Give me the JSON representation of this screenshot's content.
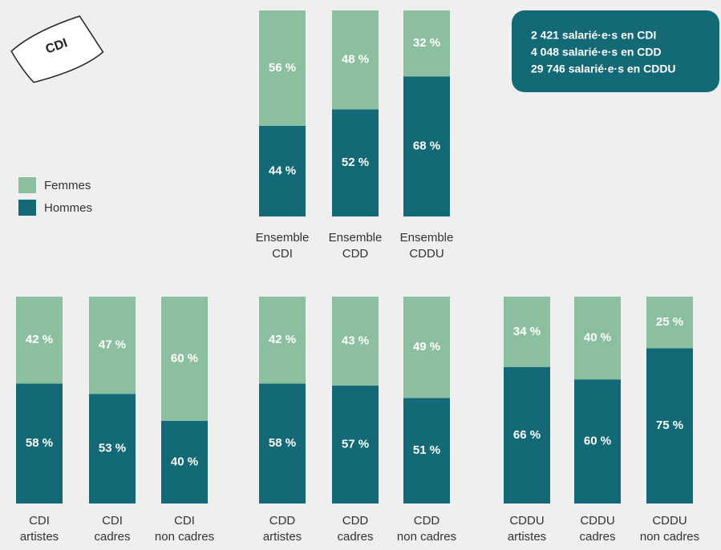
{
  "icon_label": "CDI",
  "note_lines": [
    "2 421 salarié·e·s en CDI",
    "4 048 salarié·e·s en CDD",
    "29 746 salarié·e·s en CDDU"
  ],
  "chart_data": [
    {
      "type": "bar",
      "stacked": true,
      "ylim": [
        0,
        100
      ],
      "categories": [
        [
          "Ensemble",
          "CDI"
        ],
        [
          "Ensemble",
          "CDD"
        ],
        [
          "Ensemble",
          "CDDU"
        ]
      ],
      "series": [
        {
          "name": "Hommes",
          "color": "#136a76",
          "values": [
            44,
            52,
            68
          ],
          "value_labels": [
            "44 %",
            "52 %",
            "68 %"
          ]
        },
        {
          "name": "Femmes",
          "color": "#8bbf9f",
          "values": [
            56,
            48,
            32
          ],
          "value_labels": [
            "56 %",
            "48 %",
            "32 %"
          ]
        }
      ]
    },
    {
      "type": "bar",
      "stacked": true,
      "ylim": [
        0,
        100
      ],
      "categories": [
        [
          "CDI",
          "artistes"
        ],
        [
          "CDI",
          "cadres"
        ],
        [
          "CDI",
          "non cadres"
        ]
      ],
      "series": [
        {
          "name": "Hommes",
          "color": "#136a76",
          "values": [
            58,
            53,
            40
          ],
          "value_labels": [
            "58 %",
            "53 %",
            "40 %"
          ]
        },
        {
          "name": "Femmes",
          "color": "#8bbf9f",
          "values": [
            42,
            47,
            60
          ],
          "value_labels": [
            "42 %",
            "47 %",
            "60 %"
          ]
        }
      ]
    },
    {
      "type": "bar",
      "stacked": true,
      "ylim": [
        0,
        100
      ],
      "categories": [
        [
          "CDD",
          "artistes"
        ],
        [
          "CDD",
          "cadres"
        ],
        [
          "CDD",
          "non cadres"
        ]
      ],
      "series": [
        {
          "name": "Hommes",
          "color": "#136a76",
          "values": [
            58,
            57,
            51
          ],
          "value_labels": [
            "58 %",
            "57 %",
            "51 %"
          ]
        },
        {
          "name": "Femmes",
          "color": "#8bbf9f",
          "values": [
            42,
            43,
            49
          ],
          "value_labels": [
            "42 %",
            "43 %",
            "49 %"
          ]
        }
      ]
    },
    {
      "type": "bar",
      "stacked": true,
      "ylim": [
        0,
        100
      ],
      "categories": [
        [
          "CDDU",
          "artistes"
        ],
        [
          "CDDU",
          "cadres"
        ],
        [
          "CDDU",
          "non cadres"
        ]
      ],
      "series": [
        {
          "name": "Hommes",
          "color": "#136a76",
          "values": [
            66,
            60,
            75
          ],
          "value_labels": [
            "66 %",
            "60 %",
            "75 %"
          ]
        },
        {
          "name": "Femmes",
          "color": "#8bbf9f",
          "values": [
            34,
            40,
            25
          ],
          "value_labels": [
            "34 %",
            "40 %",
            "25 %"
          ]
        }
      ]
    }
  ]
}
